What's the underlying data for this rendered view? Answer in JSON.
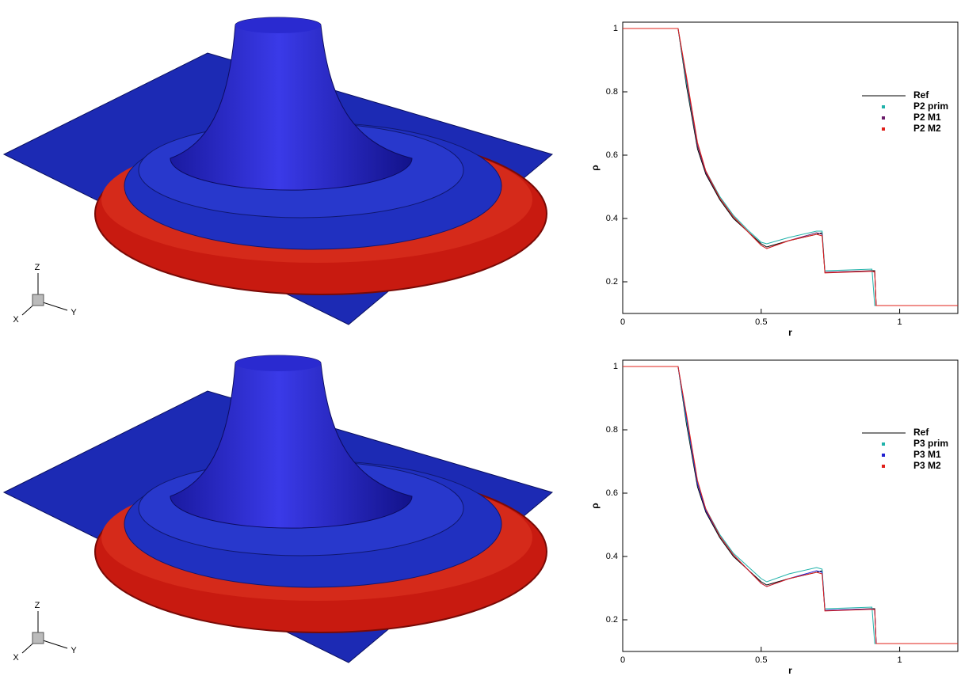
{
  "panels": [
    {
      "triad": {
        "z": "Z",
        "x": "X",
        "y": "Y"
      }
    },
    {
      "triad": {
        "z": "Z",
        "x": "X",
        "y": "Y"
      }
    }
  ],
  "chart_data": [
    {
      "type": "line",
      "xlabel": "r",
      "ylabel": "ρ",
      "xlim": [
        0,
        1.21
      ],
      "ylim": [
        0.1,
        1.02
      ],
      "xticks": [
        0,
        0.5,
        1
      ],
      "yticks": [
        0.2,
        0.4,
        0.6,
        0.8,
        1
      ],
      "x": [
        0,
        0.2,
        0.23,
        0.27,
        0.3,
        0.35,
        0.4,
        0.45,
        0.5,
        0.52,
        0.6,
        0.7,
        0.72,
        0.73,
        0.8,
        0.9,
        0.91,
        0.915,
        1.0,
        1.21
      ],
      "series": [
        {
          "name": "Ref",
          "color": "#000000",
          "values": [
            1,
            1,
            0.82,
            0.62,
            0.54,
            0.46,
            0.4,
            0.36,
            0.32,
            0.31,
            0.33,
            0.35,
            0.355,
            0.23,
            0.232,
            0.235,
            0.235,
            0.125,
            0.125,
            0.125
          ]
        },
        {
          "name": "P2 prim",
          "color": "#20b2aa",
          "values": [
            1,
            1,
            0.83,
            0.63,
            0.55,
            0.47,
            0.41,
            0.365,
            0.325,
            0.32,
            0.34,
            0.36,
            0.36,
            0.235,
            0.237,
            0.24,
            0.125,
            0.125,
            0.125,
            0.125
          ]
        },
        {
          "name": "P2 M1",
          "color": "#6a1b6a",
          "values": [
            1,
            1,
            0.84,
            0.63,
            0.545,
            0.465,
            0.405,
            0.36,
            0.315,
            0.305,
            0.33,
            0.355,
            0.35,
            0.23,
            0.232,
            0.234,
            0.23,
            0.125,
            0.125,
            0.125
          ]
        },
        {
          "name": "P2 M2",
          "color": "#e0201a",
          "values": [
            1,
            1,
            0.85,
            0.64,
            0.55,
            0.465,
            0.405,
            0.36,
            0.315,
            0.305,
            0.33,
            0.35,
            0.345,
            0.228,
            0.23,
            0.233,
            0.232,
            0.125,
            0.125,
            0.125
          ]
        }
      ]
    },
    {
      "type": "line",
      "xlabel": "r",
      "ylabel": "ρ",
      "xlim": [
        0,
        1.21
      ],
      "ylim": [
        0.1,
        1.02
      ],
      "xticks": [
        0,
        0.5,
        1
      ],
      "yticks": [
        0.2,
        0.4,
        0.6,
        0.8,
        1
      ],
      "x": [
        0,
        0.2,
        0.23,
        0.27,
        0.3,
        0.35,
        0.4,
        0.45,
        0.5,
        0.52,
        0.6,
        0.7,
        0.72,
        0.73,
        0.8,
        0.9,
        0.91,
        0.915,
        1.0,
        1.21
      ],
      "series": [
        {
          "name": "Ref",
          "color": "#000000",
          "values": [
            1,
            1,
            0.82,
            0.62,
            0.54,
            0.46,
            0.4,
            0.36,
            0.32,
            0.31,
            0.33,
            0.35,
            0.355,
            0.23,
            0.232,
            0.235,
            0.235,
            0.125,
            0.125,
            0.125
          ]
        },
        {
          "name": "P3 prim",
          "color": "#20b2aa",
          "values": [
            1,
            1,
            0.83,
            0.63,
            0.55,
            0.47,
            0.41,
            0.37,
            0.33,
            0.32,
            0.345,
            0.365,
            0.36,
            0.235,
            0.237,
            0.24,
            0.125,
            0.125,
            0.125,
            0.125
          ]
        },
        {
          "name": "P3 M1",
          "color": "#2020d0",
          "values": [
            1,
            1,
            0.84,
            0.63,
            0.545,
            0.465,
            0.405,
            0.36,
            0.315,
            0.305,
            0.33,
            0.355,
            0.35,
            0.23,
            0.232,
            0.234,
            0.232,
            0.125,
            0.125,
            0.125
          ]
        },
        {
          "name": "P3 M2",
          "color": "#e0201a",
          "values": [
            1,
            1,
            0.85,
            0.64,
            0.55,
            0.465,
            0.405,
            0.36,
            0.315,
            0.305,
            0.33,
            0.35,
            0.345,
            0.228,
            0.23,
            0.233,
            0.232,
            0.125,
            0.125,
            0.125
          ]
        }
      ]
    }
  ]
}
